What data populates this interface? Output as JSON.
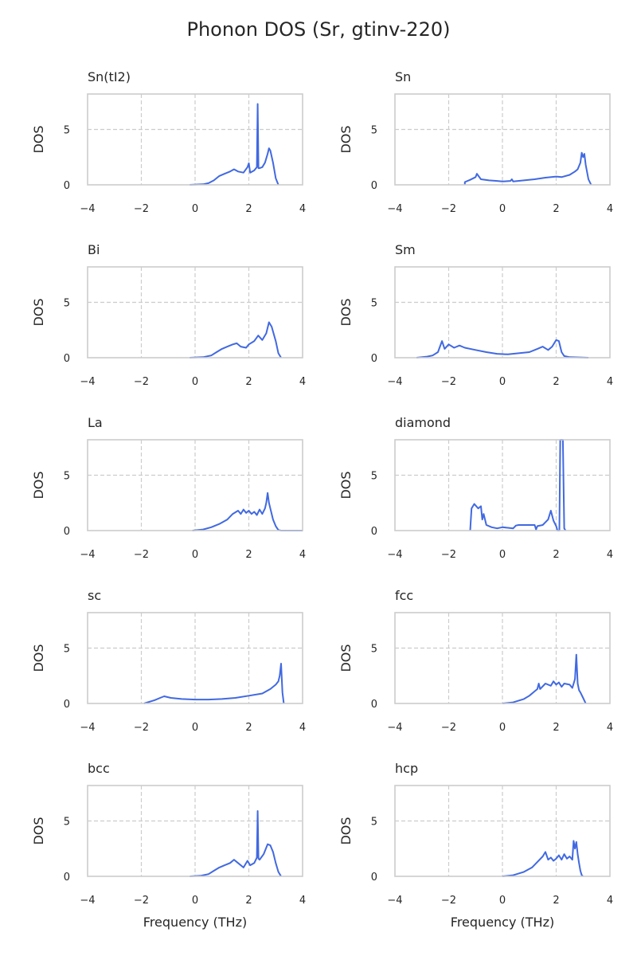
{
  "figure_title": "Phonon DOS (Sr, gtinv-220)",
  "colors": {
    "line": "#4169e1",
    "axes": "#cccccc",
    "grid": "#cccccc",
    "text": "#262626"
  },
  "chart_data": [
    {
      "type": "line",
      "title": "Sn(tI2)",
      "ylabel": "DOS",
      "xlabel": "",
      "xlim": [
        -4,
        4
      ],
      "ylim": [
        0,
        8.2
      ],
      "xticks": [
        "−4",
        "−2",
        "0",
        "2",
        "4"
      ],
      "yticks": [
        "0",
        "5"
      ],
      "grid": true,
      "x": [
        -0.2,
        0.3,
        0.5,
        0.7,
        0.9,
        1.1,
        1.3,
        1.45,
        1.6,
        1.8,
        1.95,
        2.0,
        2.05,
        2.2,
        2.3,
        2.33,
        2.36,
        2.4,
        2.5,
        2.6,
        2.7,
        2.75,
        2.8,
        2.9,
        3.0,
        3.1
      ],
      "y": [
        0,
        0.05,
        0.15,
        0.4,
        0.8,
        1.0,
        1.2,
        1.4,
        1.2,
        1.1,
        1.6,
        1.95,
        1.1,
        1.3,
        1.6,
        7.3,
        1.5,
        1.5,
        1.6,
        2.0,
        2.8,
        3.3,
        3.1,
        2.0,
        0.6,
        0
      ]
    },
    {
      "type": "line",
      "title": "Sn",
      "ylabel": "DOS",
      "xlabel": "",
      "xlim": [
        -4,
        4
      ],
      "ylim": [
        0,
        8.2
      ],
      "xticks": [
        "−4",
        "−2",
        "0",
        "2",
        "4"
      ],
      "yticks": [
        "0",
        "5"
      ],
      "grid": true,
      "x": [
        -1.4,
        -1.4,
        -1.2,
        -1.0,
        -0.95,
        -0.8,
        -0.5,
        -0.2,
        0.0,
        0.3,
        0.35,
        0.4,
        0.8,
        1.2,
        1.6,
        2.0,
        2.2,
        2.5,
        2.7,
        2.8,
        2.9,
        2.95,
        3.0,
        3.05,
        3.1,
        3.2,
        3.3
      ],
      "y": [
        0,
        0.25,
        0.45,
        0.7,
        1.0,
        0.5,
        0.4,
        0.35,
        0.3,
        0.35,
        0.5,
        0.3,
        0.4,
        0.5,
        0.65,
        0.75,
        0.7,
        0.9,
        1.2,
        1.4,
        2.0,
        2.9,
        2.5,
        2.8,
        1.8,
        0.5,
        0
      ]
    },
    {
      "type": "line",
      "title": "Bi",
      "ylabel": "DOS",
      "xlabel": "",
      "xlim": [
        -4,
        4
      ],
      "ylim": [
        0,
        8.2
      ],
      "xticks": [
        "−4",
        "−2",
        "0",
        "2",
        "4"
      ],
      "yticks": [
        "0",
        "5"
      ],
      "grid": true,
      "x": [
        -0.2,
        0.3,
        0.6,
        0.8,
        1.0,
        1.2,
        1.4,
        1.55,
        1.7,
        1.9,
        2.0,
        2.2,
        2.35,
        2.5,
        2.65,
        2.75,
        2.85,
        3.0,
        3.1,
        3.2
      ],
      "y": [
        0,
        0.05,
        0.2,
        0.5,
        0.8,
        1.0,
        1.2,
        1.3,
        1.0,
        0.9,
        1.2,
        1.5,
        2.0,
        1.6,
        2.2,
        3.2,
        2.8,
        1.5,
        0.4,
        0
      ]
    },
    {
      "type": "line",
      "title": "Sm",
      "ylabel": "DOS",
      "xlabel": "",
      "xlim": [
        -4,
        4
      ],
      "ylim": [
        0,
        8.2
      ],
      "xticks": [
        "−4",
        "−2",
        "0",
        "2",
        "4"
      ],
      "yticks": [
        "0",
        "5"
      ],
      "grid": true,
      "x": [
        -3.2,
        -2.8,
        -2.6,
        -2.4,
        -2.25,
        -2.15,
        -2.0,
        -1.8,
        -1.6,
        -1.4,
        -1.0,
        -0.6,
        -0.2,
        0.2,
        0.6,
        1.0,
        1.3,
        1.5,
        1.7,
        1.85,
        2.0,
        2.1,
        2.2,
        2.3,
        2.5,
        3.2
      ],
      "y": [
        0,
        0.1,
        0.2,
        0.5,
        1.5,
        0.8,
        1.2,
        0.9,
        1.1,
        0.9,
        0.7,
        0.5,
        0.35,
        0.3,
        0.4,
        0.5,
        0.8,
        1.0,
        0.7,
        1.0,
        1.6,
        1.5,
        0.5,
        0.15,
        0.05,
        0
      ]
    },
    {
      "type": "line",
      "title": "La",
      "ylabel": "DOS",
      "xlabel": "",
      "xlim": [
        -4,
        4
      ],
      "ylim": [
        0,
        8.2
      ],
      "xticks": [
        "−4",
        "−2",
        "0",
        "2",
        "4"
      ],
      "yticks": [
        "0",
        "5"
      ],
      "grid": true,
      "x": [
        -0.1,
        0.3,
        0.6,
        0.9,
        1.2,
        1.4,
        1.6,
        1.7,
        1.8,
        1.9,
        2.0,
        2.1,
        2.2,
        2.3,
        2.4,
        2.5,
        2.6,
        2.65,
        2.7,
        2.75,
        2.8,
        2.9,
        3.0,
        3.1,
        3.2,
        4.0
      ],
      "y": [
        0,
        0.1,
        0.3,
        0.6,
        1.0,
        1.5,
        1.8,
        1.5,
        1.9,
        1.6,
        1.8,
        1.5,
        1.7,
        1.4,
        1.9,
        1.5,
        2.0,
        2.5,
        3.4,
        2.5,
        2.0,
        1.0,
        0.4,
        0.05,
        0,
        0
      ]
    },
    {
      "type": "line",
      "title": "diamond",
      "ylabel": "DOS",
      "xlabel": "",
      "xlim": [
        -4,
        4
      ],
      "ylim": [
        0,
        8.2
      ],
      "xticks": [
        "−4",
        "−2",
        "0",
        "2",
        "4"
      ],
      "yticks": [
        "0",
        "5"
      ],
      "grid": true,
      "x": [
        -1.2,
        -1.15,
        -1.05,
        -0.9,
        -0.8,
        -0.75,
        -0.7,
        -0.6,
        -0.4,
        -0.2,
        0.0,
        0.2,
        0.4,
        0.5,
        0.6,
        1.0,
        1.2,
        1.25,
        1.3,
        1.5,
        1.7,
        1.8,
        1.9,
        2.0,
        2.05,
        2.12,
        2.15,
        2.2,
        2.25,
        2.3,
        2.35
      ],
      "y": [
        0,
        2.0,
        2.4,
        2.0,
        2.2,
        1.0,
        1.5,
        0.5,
        0.3,
        0.2,
        0.3,
        0.25,
        0.2,
        0.45,
        0.5,
        0.5,
        0.5,
        0.1,
        0.4,
        0.5,
        1.0,
        1.8,
        0.9,
        0.4,
        0,
        0,
        8.2,
        8.2,
        8.2,
        0.2,
        0
      ]
    },
    {
      "type": "line",
      "title": "sc",
      "ylabel": "DOS",
      "xlabel": "",
      "xlim": [
        -4,
        4
      ],
      "ylim": [
        0,
        8.2
      ],
      "xticks": [
        "−4",
        "−2",
        "0",
        "2",
        "4"
      ],
      "yticks": [
        "0",
        "5"
      ],
      "grid": true,
      "x": [
        -1.9,
        -1.5,
        -1.3,
        -1.15,
        -0.9,
        -0.5,
        0.0,
        0.5,
        1.0,
        1.5,
        2.0,
        2.5,
        2.8,
        3.0,
        3.1,
        3.15,
        3.2,
        3.25,
        3.3
      ],
      "y": [
        0,
        0.3,
        0.5,
        0.65,
        0.5,
        0.4,
        0.35,
        0.35,
        0.4,
        0.5,
        0.7,
        0.9,
        1.3,
        1.7,
        2.0,
        2.5,
        3.6,
        1.0,
        0
      ]
    },
    {
      "type": "line",
      "title": "fcc",
      "ylabel": "DOS",
      "xlabel": "",
      "xlim": [
        -4,
        4
      ],
      "ylim": [
        0,
        8.2
      ],
      "xticks": [
        "−4",
        "−2",
        "0",
        "2",
        "4"
      ],
      "yticks": [
        "0",
        "5"
      ],
      "grid": true,
      "x": [
        0.0,
        0.4,
        0.8,
        1.0,
        1.15,
        1.3,
        1.35,
        1.4,
        1.6,
        1.8,
        1.9,
        2.0,
        2.1,
        2.2,
        2.3,
        2.5,
        2.6,
        2.7,
        2.75,
        2.8,
        2.85,
        2.9,
        3.0,
        3.1
      ],
      "y": [
        0,
        0.1,
        0.4,
        0.7,
        1.0,
        1.3,
        1.8,
        1.3,
        1.8,
        1.6,
        2.0,
        1.7,
        1.9,
        1.5,
        1.8,
        1.7,
        1.4,
        2.2,
        4.4,
        1.8,
        1.2,
        1.0,
        0.5,
        0
      ]
    },
    {
      "type": "line",
      "title": "bcc",
      "ylabel": "DOS",
      "xlabel": "Frequency (THz)",
      "xlim": [
        -4,
        4
      ],
      "ylim": [
        0,
        8.2
      ],
      "xticks": [
        "−4",
        "−2",
        "0",
        "2",
        "4"
      ],
      "yticks": [
        "0",
        "5"
      ],
      "grid": true,
      "x": [
        -0.2,
        0.2,
        0.5,
        0.7,
        0.9,
        1.1,
        1.3,
        1.45,
        1.6,
        1.8,
        1.95,
        2.05,
        2.2,
        2.3,
        2.33,
        2.36,
        2.4,
        2.55,
        2.7,
        2.8,
        2.9,
        3.0,
        3.1,
        3.2
      ],
      "y": [
        0,
        0.05,
        0.2,
        0.5,
        0.8,
        1.0,
        1.2,
        1.5,
        1.2,
        0.8,
        1.4,
        1.0,
        1.2,
        1.7,
        5.9,
        1.6,
        1.5,
        2.0,
        2.9,
        2.8,
        2.2,
        1.2,
        0.4,
        0
      ]
    },
    {
      "type": "line",
      "title": "hcp",
      "ylabel": "DOS",
      "xlabel": "Frequency (THz)",
      "xlim": [
        -4,
        4
      ],
      "ylim": [
        0,
        8.2
      ],
      "xticks": [
        "−4",
        "−2",
        "0",
        "2",
        "4"
      ],
      "yticks": [
        "0",
        "5"
      ],
      "grid": true,
      "x": [
        0.0,
        0.4,
        0.8,
        1.1,
        1.3,
        1.5,
        1.6,
        1.7,
        1.8,
        1.9,
        2.0,
        2.1,
        2.2,
        2.3,
        2.4,
        2.5,
        2.6,
        2.65,
        2.7,
        2.75,
        2.8,
        2.85,
        2.9,
        2.95,
        3.0
      ],
      "y": [
        0,
        0.1,
        0.4,
        0.8,
        1.3,
        1.8,
        2.2,
        1.5,
        1.7,
        1.4,
        1.6,
        1.9,
        1.5,
        2.0,
        1.6,
        1.8,
        1.5,
        3.2,
        2.5,
        3.1,
        2.0,
        1.2,
        0.5,
        0.1,
        0
      ]
    }
  ]
}
